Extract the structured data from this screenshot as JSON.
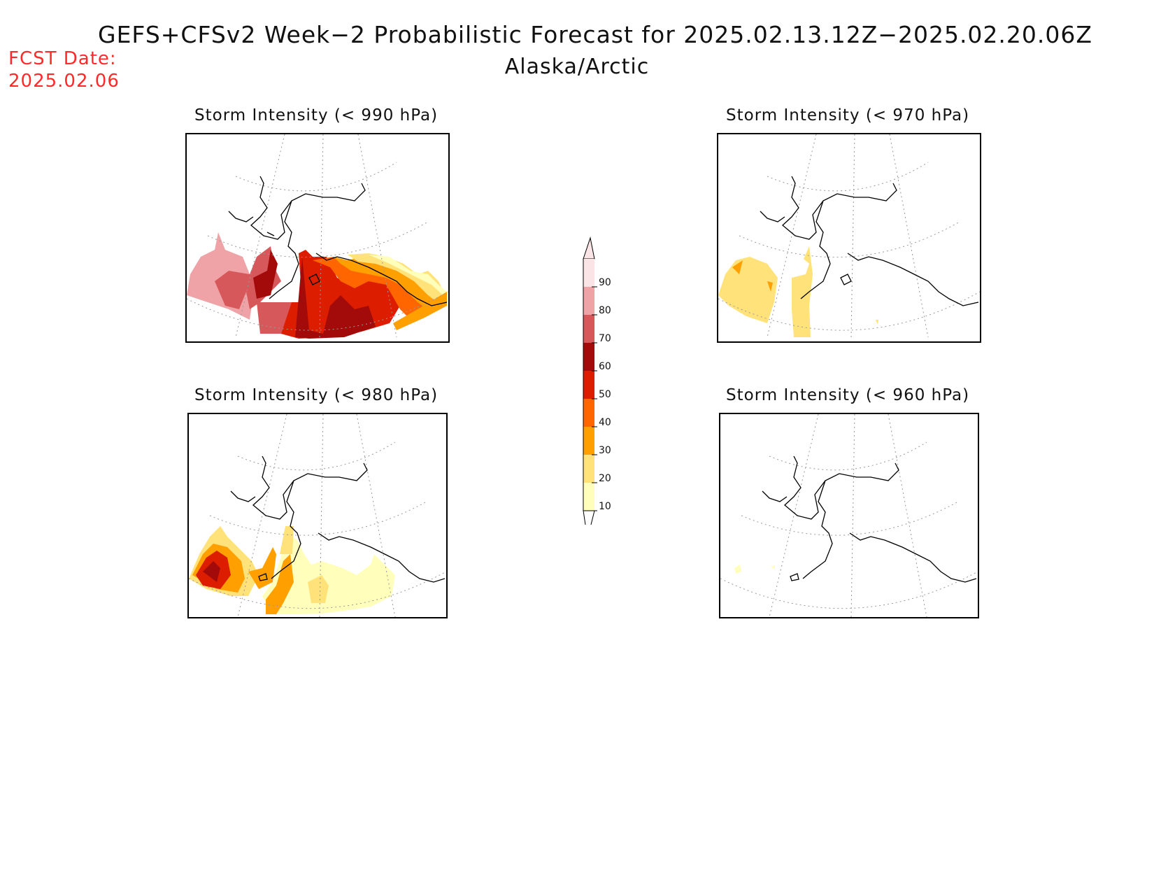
{
  "header": {
    "title": "GEFS+CFSv2 Week−2 Probabilistic Forecast for 2025.02.13.12Z−2025.02.20.06Z",
    "region": "Alaska/Arctic",
    "fcst_date_label": "FCST Date:",
    "fcst_date_value": "2025.02.06"
  },
  "panels": [
    {
      "id": "p990",
      "title": "Storm Intensity (< 990 hPa)"
    },
    {
      "id": "p970",
      "title": "Storm Intensity (< 970 hPa)"
    },
    {
      "id": "p980",
      "title": "Storm Intensity (< 980 hPa)"
    },
    {
      "id": "p960",
      "title": "Storm Intensity (< 960 hPa)"
    }
  ],
  "colorbar": {
    "labels": [
      "90",
      "80",
      "70",
      "60",
      "50",
      "40",
      "30",
      "20",
      "10"
    ],
    "colors": [
      "#fbe4e6",
      "#f0a3a6",
      "#d6585b",
      "#a30b0b",
      "#dd1d00",
      "#ff6600",
      "#ff9f00",
      "#ffe27a",
      "#ffffbb"
    ]
  }
}
